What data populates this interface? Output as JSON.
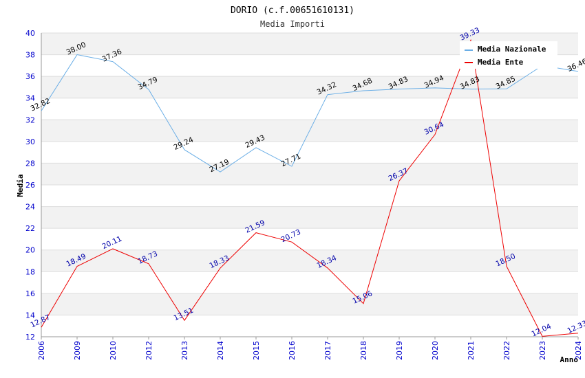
{
  "chart_data": {
    "type": "line",
    "title": "DORIO (c.f.00651610131)",
    "subtitle": "Media Importi",
    "xlabel": "Anno",
    "ylabel": "Media",
    "categories": [
      "2006",
      "2009",
      "2010",
      "2012",
      "2013",
      "2014",
      "2015",
      "2016",
      "2017",
      "2018",
      "2019",
      "2020",
      "2021",
      "2022",
      "2023",
      "2024"
    ],
    "ylim": [
      12,
      40
    ],
    "yticks": [
      "12",
      "14",
      "16",
      "18",
      "20",
      "22",
      "24",
      "26",
      "28",
      "30",
      "32",
      "34",
      "36",
      "38",
      "40"
    ],
    "grid": "horizontal bands",
    "legend_position": "top-right",
    "series": [
      {
        "name": "Media Nazionale",
        "color": "#6aaee6",
        "values": [
          32.82,
          38.0,
          37.36,
          34.79,
          29.24,
          27.19,
          29.43,
          27.71,
          34.32,
          34.68,
          34.83,
          34.94,
          34.83,
          34.85,
          37.0,
          36.46
        ],
        "labels": [
          "32.82",
          "38.00",
          "37.36",
          "34.79",
          "29.24",
          "27.19",
          "29.43",
          "27.71",
          "34.32",
          "34.68",
          "34.83",
          "34.94",
          "34.83",
          "34.85",
          "",
          "36.46"
        ]
      },
      {
        "name": "Media Ente",
        "color": "#ee0000",
        "values": [
          12.87,
          18.49,
          20.11,
          18.73,
          13.51,
          18.33,
          21.59,
          20.73,
          18.34,
          15.06,
          26.37,
          30.64,
          39.33,
          18.5,
          12.04,
          12.33
        ],
        "labels": [
          "12.87",
          "18.49",
          "20.11",
          "18.73",
          "13.51",
          "18.33",
          "21.59",
          "20.73",
          "18.34",
          "15.06",
          "26.37",
          "30.64",
          "39.33",
          "18.50",
          "12.04",
          "12.33"
        ]
      }
    ]
  }
}
